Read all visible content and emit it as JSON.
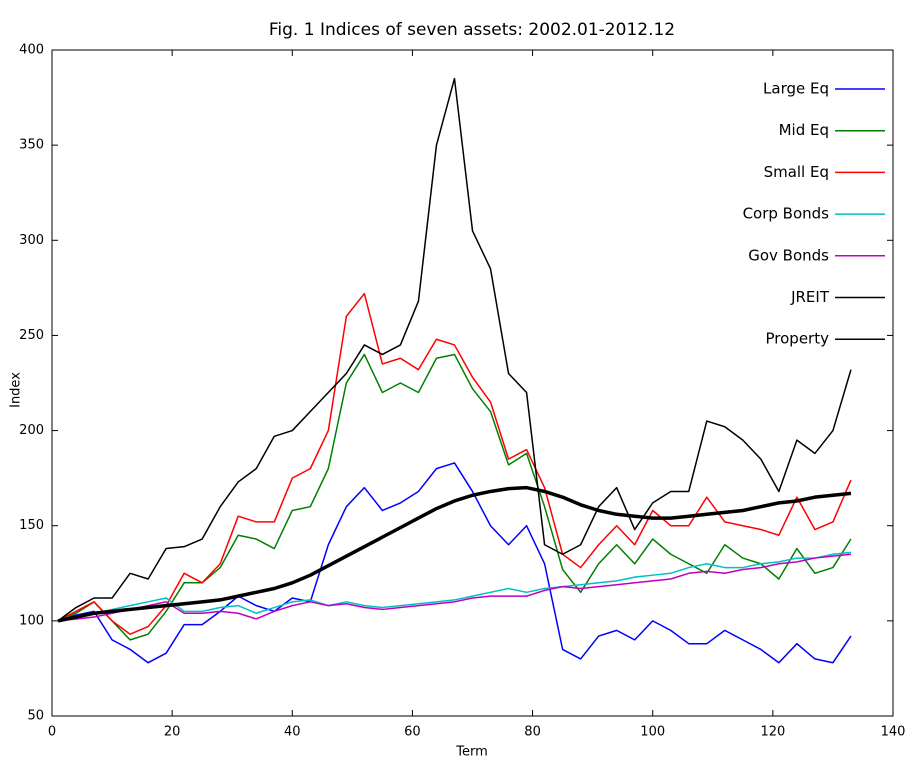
{
  "chart_data": {
    "type": "line",
    "title": "Fig. 1  Indices of seven assets: 2002.01-2012.12",
    "x_label": "Term",
    "y_label": "Index",
    "x": [
      1,
      4,
      7,
      10,
      13,
      16,
      19,
      22,
      25,
      28,
      31,
      34,
      37,
      40,
      43,
      46,
      49,
      52,
      55,
      58,
      61,
      64,
      67,
      70,
      73,
      76,
      79,
      82,
      85,
      88,
      91,
      94,
      97,
      100,
      103,
      106,
      109,
      112,
      115,
      118,
      121,
      124,
      127,
      130,
      133
    ],
    "series": [
      {
        "name": "Large Eq",
        "color": "#0000ff",
        "line_width": 1.5,
        "values": [
          100,
          103,
          105,
          90,
          85,
          78,
          83,
          98,
          98,
          105,
          113,
          108,
          105,
          112,
          110,
          140,
          160,
          170,
          158,
          162,
          168,
          180,
          183,
          168,
          150,
          140,
          150,
          130,
          85,
          80,
          92,
          95,
          90,
          100,
          95,
          88,
          88,
          95,
          90,
          85,
          78,
          88,
          80,
          78,
          92
        ]
      },
      {
        "name": "Mid Eq",
        "color": "#008000",
        "line_width": 1.5,
        "values": [
          100,
          104,
          110,
          100,
          90,
          93,
          105,
          120,
          120,
          128,
          145,
          143,
          138,
          158,
          160,
          180,
          225,
          240,
          220,
          225,
          220,
          238,
          240,
          222,
          210,
          182,
          188,
          160,
          127,
          115,
          130,
          140,
          130,
          143,
          135,
          130,
          125,
          140,
          133,
          130,
          122,
          138,
          125,
          128,
          143
        ]
      },
      {
        "name": "Small Eq",
        "color": "#ff0000",
        "line_width": 1.5,
        "values": [
          100,
          105,
          110,
          100,
          93,
          97,
          108,
          125,
          120,
          130,
          155,
          152,
          152,
          175,
          180,
          200,
          260,
          272,
          235,
          238,
          232,
          248,
          245,
          228,
          215,
          185,
          190,
          170,
          135,
          128,
          140,
          150,
          140,
          158,
          150,
          150,
          165,
          152,
          150,
          148,
          145,
          165,
          148,
          152,
          174
        ]
      },
      {
        "name": "Corp Bonds",
        "color": "#00c0c0",
        "line_width": 1.5,
        "values": [
          100,
          102,
          104,
          106,
          108,
          110,
          112,
          105,
          105,
          107,
          108,
          104,
          107,
          110,
          111,
          108,
          110,
          108,
          107,
          108,
          109,
          110,
          111,
          113,
          115,
          117,
          115,
          117,
          118,
          119,
          120,
          121,
          123,
          124,
          125,
          128,
          130,
          128,
          128,
          130,
          131,
          133,
          133,
          135,
          136
        ]
      },
      {
        "name": "Gov Bonds",
        "color": "#c000c0",
        "line_width": 1.5,
        "values": [
          100,
          101,
          102,
          104,
          106,
          108,
          110,
          104,
          104,
          105,
          104,
          101,
          105,
          108,
          110,
          108,
          109,
          107,
          106,
          107,
          108,
          109,
          110,
          112,
          113,
          113,
          113,
          116,
          118,
          117,
          118,
          119,
          120,
          121,
          122,
          125,
          126,
          125,
          127,
          128,
          130,
          131,
          133,
          134,
          135
        ]
      },
      {
        "name": "JREIT",
        "color": "#000000",
        "line_width": 1.5,
        "values": [
          100,
          107,
          112,
          112,
          125,
          122,
          138,
          139,
          143,
          160,
          173,
          180,
          197,
          200,
          210,
          220,
          230,
          245,
          240,
          245,
          268,
          350,
          385,
          305,
          285,
          230,
          220,
          140,
          135,
          140,
          160,
          170,
          148,
          162,
          168,
          168,
          205,
          202,
          195,
          185,
          168,
          195,
          188,
          200,
          232
        ]
      },
      {
        "name": "Property",
        "color": "#000000",
        "line_width": 3.5,
        "values": [
          100,
          102,
          104,
          105,
          106,
          107,
          108,
          109,
          110,
          111,
          113,
          115,
          117,
          120,
          124,
          129,
          134,
          139,
          144,
          149,
          154,
          159,
          163,
          166,
          168,
          169.5,
          170,
          168,
          165,
          161,
          158,
          156,
          155,
          154,
          154,
          155,
          156,
          157,
          158,
          160,
          162,
          163,
          165,
          166,
          167
        ]
      }
    ],
    "xlim": [
      0,
      140
    ],
    "xticks": [
      0,
      20,
      40,
      60,
      80,
      100,
      120,
      140
    ],
    "ylim": [
      50,
      400
    ],
    "yticks": [
      50,
      100,
      150,
      200,
      250,
      300,
      350,
      400
    ],
    "legend": "upper right",
    "grid": false
  }
}
